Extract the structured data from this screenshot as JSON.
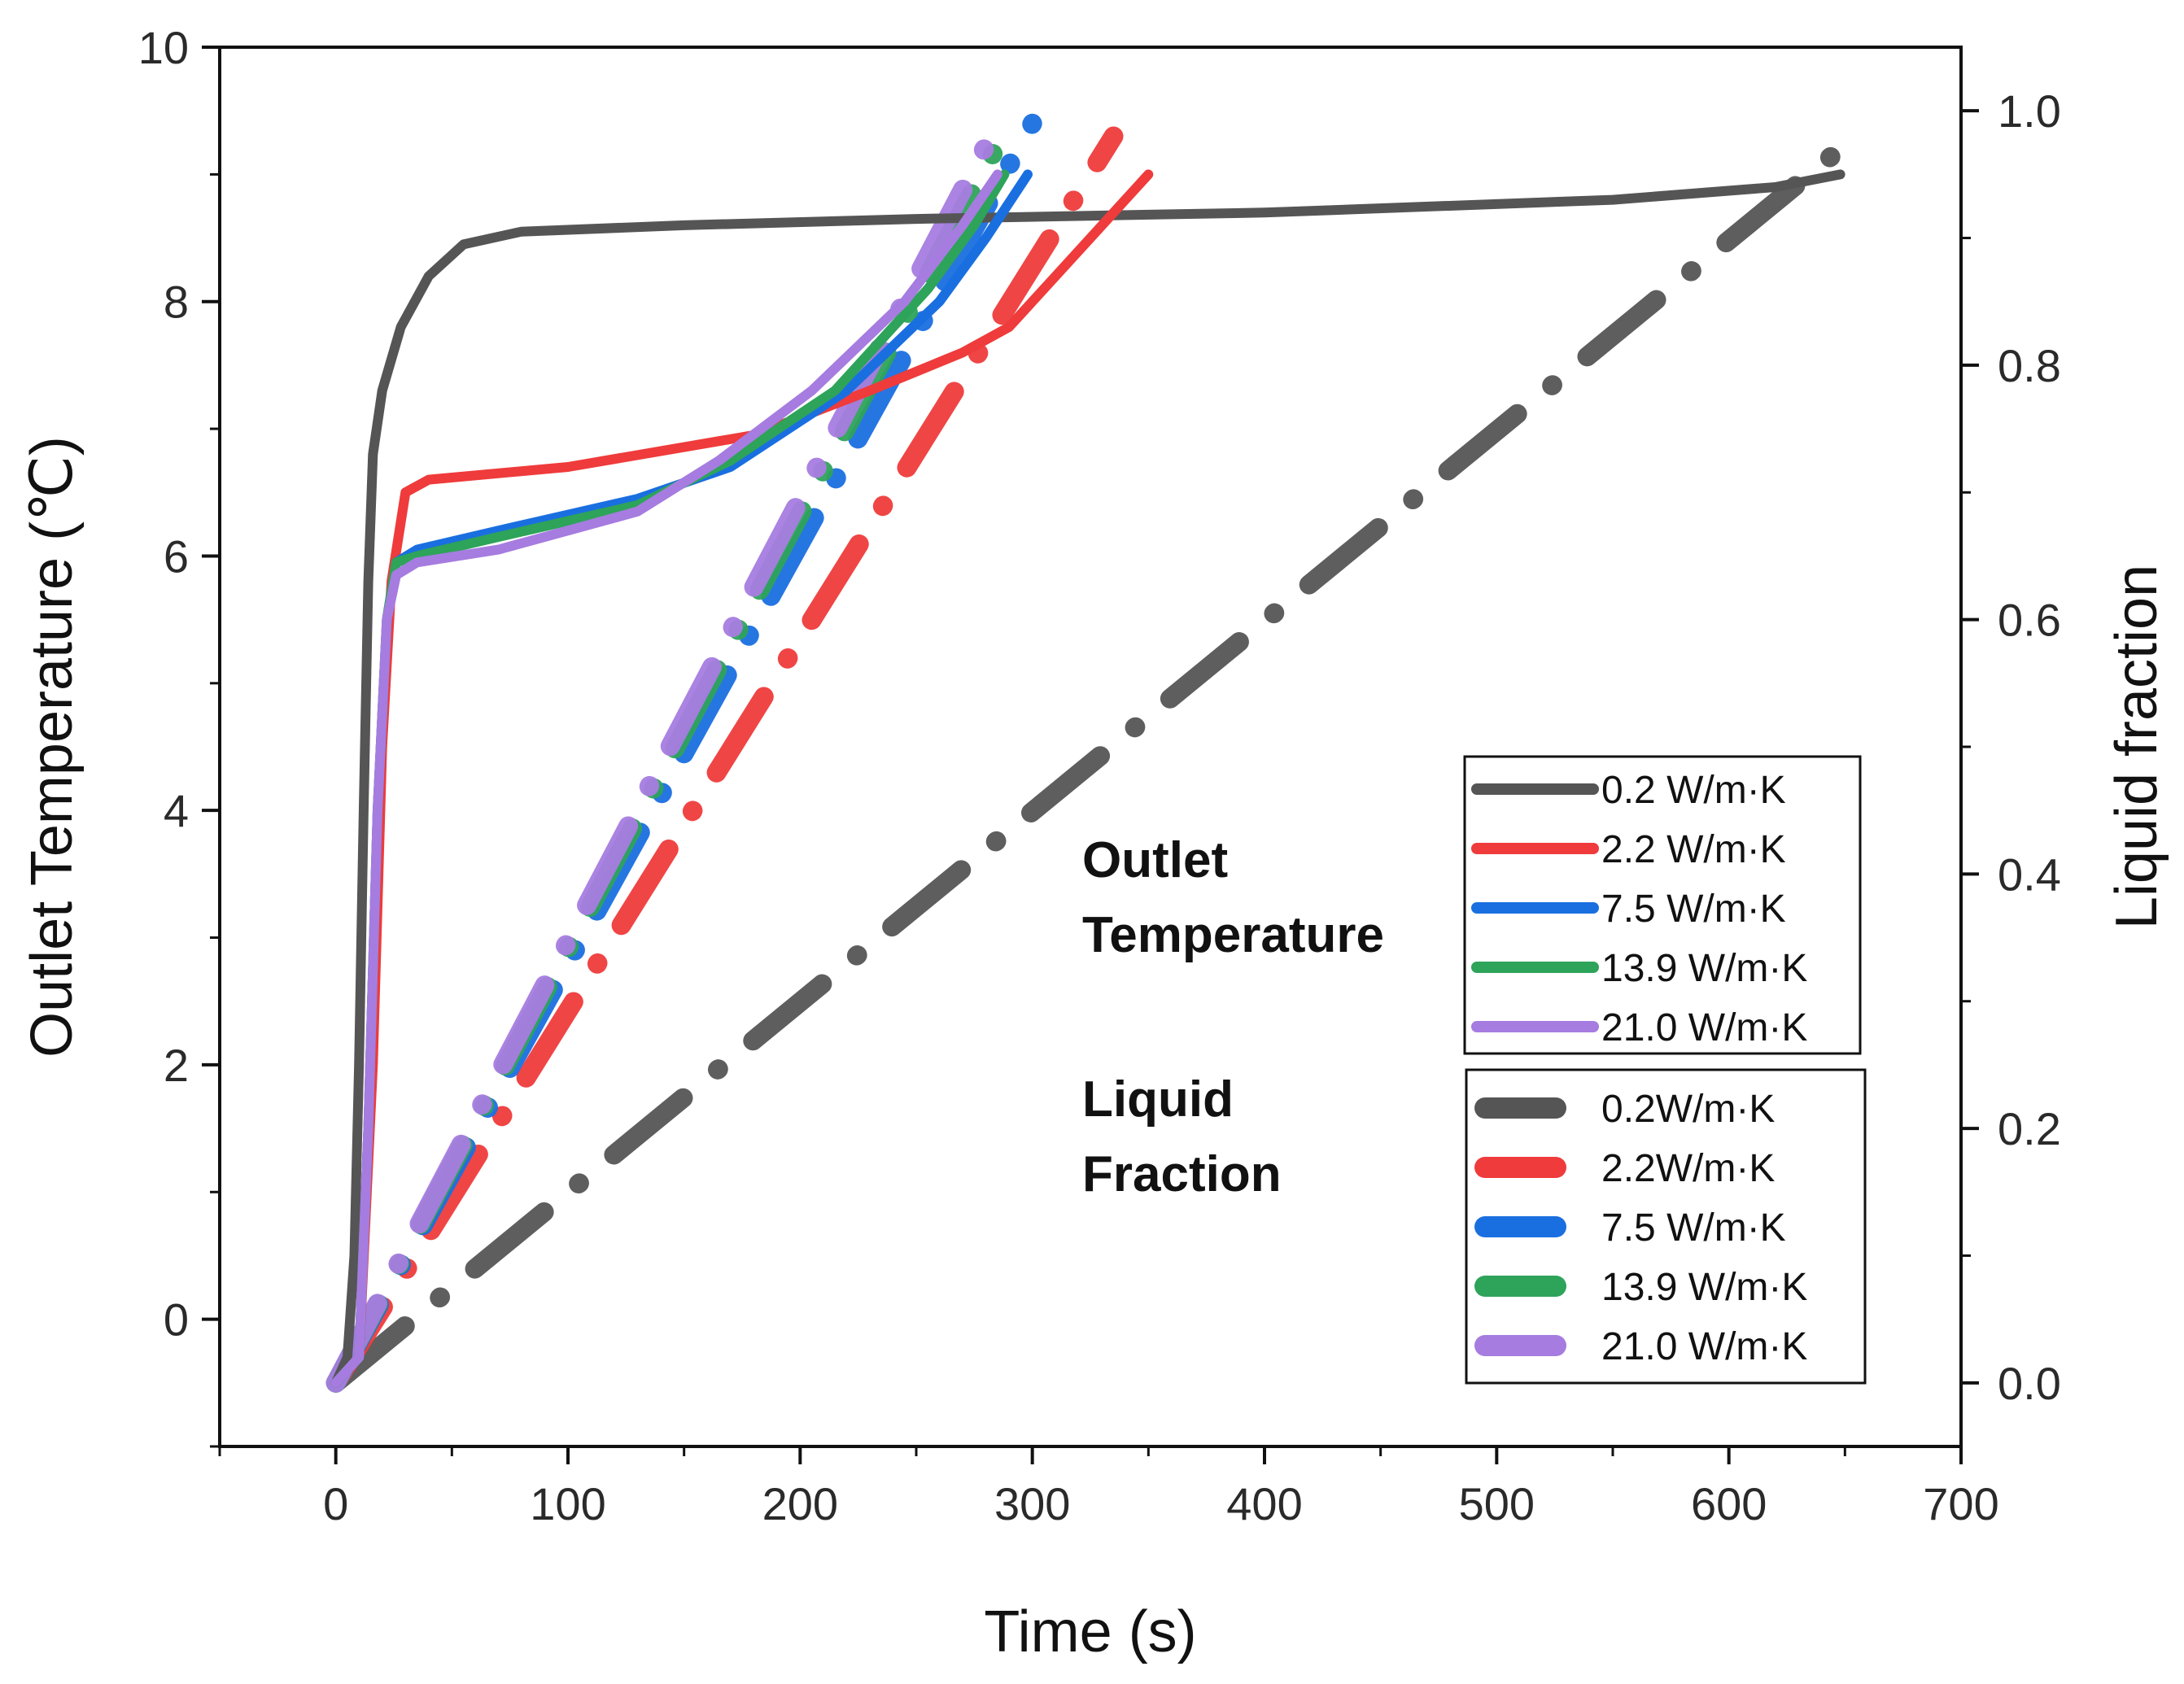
{
  "chart_data": {
    "type": "line",
    "x_axis": {
      "label": "Time (s)",
      "range": [
        -50,
        700
      ],
      "ticks": [
        0,
        100,
        200,
        300,
        400,
        500,
        600,
        700
      ],
      "tick_labels": [
        "0",
        "100",
        "200",
        "300",
        "400",
        "500",
        "600",
        "700"
      ]
    },
    "y_left_axis": {
      "label": "Outlet Temperature (℃)",
      "range": [
        -1,
        10
      ],
      "ticks": [
        0,
        2,
        4,
        6,
        8,
        10
      ],
      "tick_labels": [
        "0",
        "2",
        "4",
        "6",
        "8",
        "10"
      ]
    },
    "y_right_axis": {
      "label": "Liquid fraction",
      "range": [
        -0.05,
        1.05
      ],
      "ticks": [
        0.0,
        0.2,
        0.4,
        0.6,
        0.8,
        1.0
      ],
      "tick_labels": [
        "0.0",
        "0.2",
        "0.4",
        "0.6",
        "0.8",
        "1.0"
      ]
    },
    "annotations": {
      "outlet_line1": "Outlet",
      "outlet_line2": "Temperature",
      "liquid_line1": "Liquid",
      "liquid_line2": "Fraction"
    },
    "series_temperature": [
      {
        "name": "0.2 W/m·K",
        "color": "#555555",
        "points": [
          [
            0,
            -0.5
          ],
          [
            5,
            -0.3
          ],
          [
            8,
            0.5
          ],
          [
            10,
            2
          ],
          [
            12,
            4
          ],
          [
            14,
            5.8
          ],
          [
            16,
            6.8
          ],
          [
            20,
            7.3
          ],
          [
            28,
            7.8
          ],
          [
            40,
            8.2
          ],
          [
            55,
            8.45
          ],
          [
            80,
            8.55
          ],
          [
            150,
            8.6
          ],
          [
            250,
            8.65
          ],
          [
            400,
            8.7
          ],
          [
            550,
            8.8
          ],
          [
            620,
            8.9
          ],
          [
            648,
            9.0
          ]
        ]
      },
      {
        "name": "2.2 W/m·K",
        "color": "#ef3b3b",
        "points": [
          [
            0,
            -0.5
          ],
          [
            10,
            -0.3
          ],
          [
            16,
            2
          ],
          [
            20,
            4.5
          ],
          [
            24,
            5.8
          ],
          [
            30,
            6.5
          ],
          [
            40,
            6.6
          ],
          [
            100,
            6.7
          ],
          [
            180,
            6.95
          ],
          [
            230,
            7.3
          ],
          [
            270,
            7.6
          ],
          [
            290,
            7.8
          ],
          [
            310,
            8.2
          ],
          [
            330,
            8.6
          ],
          [
            350,
            9.0
          ]
        ]
      },
      {
        "name": "7.5 W/m·K",
        "color": "#1a6fe0",
        "points": [
          [
            0,
            -0.5
          ],
          [
            10,
            -0.3
          ],
          [
            14,
            1.5
          ],
          [
            18,
            4
          ],
          [
            22,
            5.5
          ],
          [
            26,
            5.95
          ],
          [
            35,
            6.05
          ],
          [
            70,
            6.2
          ],
          [
            130,
            6.45
          ],
          [
            170,
            6.7
          ],
          [
            220,
            7.3
          ],
          [
            260,
            8.0
          ],
          [
            280,
            8.5
          ],
          [
            298,
            9.0
          ]
        ]
      },
      {
        "name": "13.9 W/m·K",
        "color": "#2ea35a",
        "points": [
          [
            0,
            -0.5
          ],
          [
            10,
            -0.3
          ],
          [
            14,
            1.5
          ],
          [
            18,
            4
          ],
          [
            22,
            5.5
          ],
          [
            26,
            5.95
          ],
          [
            35,
            6.0
          ],
          [
            70,
            6.15
          ],
          [
            130,
            6.4
          ],
          [
            170,
            6.75
          ],
          [
            215,
            7.3
          ],
          [
            255,
            8.1
          ],
          [
            275,
            8.6
          ],
          [
            288,
            9.0
          ]
        ]
      },
      {
        "name": "21.0 W/m·K",
        "color": "#a67ce0",
        "points": [
          [
            0,
            -0.5
          ],
          [
            10,
            -0.3
          ],
          [
            14,
            1.5
          ],
          [
            18,
            4
          ],
          [
            22,
            5.5
          ],
          [
            26,
            5.85
          ],
          [
            35,
            5.95
          ],
          [
            70,
            6.05
          ],
          [
            130,
            6.35
          ],
          [
            165,
            6.75
          ],
          [
            205,
            7.3
          ],
          [
            245,
            8.0
          ],
          [
            270,
            8.6
          ],
          [
            285,
            9.0
          ]
        ]
      }
    ],
    "series_liquid_fraction": [
      {
        "name": "0.2W/m·K",
        "color": "#555555",
        "x": [
          0,
          648
        ],
        "y": [
          0.0,
          0.97
        ]
      },
      {
        "name": "2.2W/m·K",
        "color": "#ef3b3b",
        "x": [
          0,
          335
        ],
        "y": [
          0.0,
          0.98
        ]
      },
      {
        "name": "7.5 W/m·K",
        "color": "#1a6fe0",
        "x": [
          0,
          300
        ],
        "y": [
          0.0,
          0.99
        ]
      },
      {
        "name": "13.9 W/m·K",
        "color": "#2ea35a",
        "x": [
          0,
          290
        ],
        "y": [
          0.0,
          0.99
        ]
      },
      {
        "name": "21.0 W/m·K",
        "color": "#a67ce0",
        "x": [
          0,
          285
        ],
        "y": [
          0.0,
          0.99
        ]
      }
    ]
  }
}
